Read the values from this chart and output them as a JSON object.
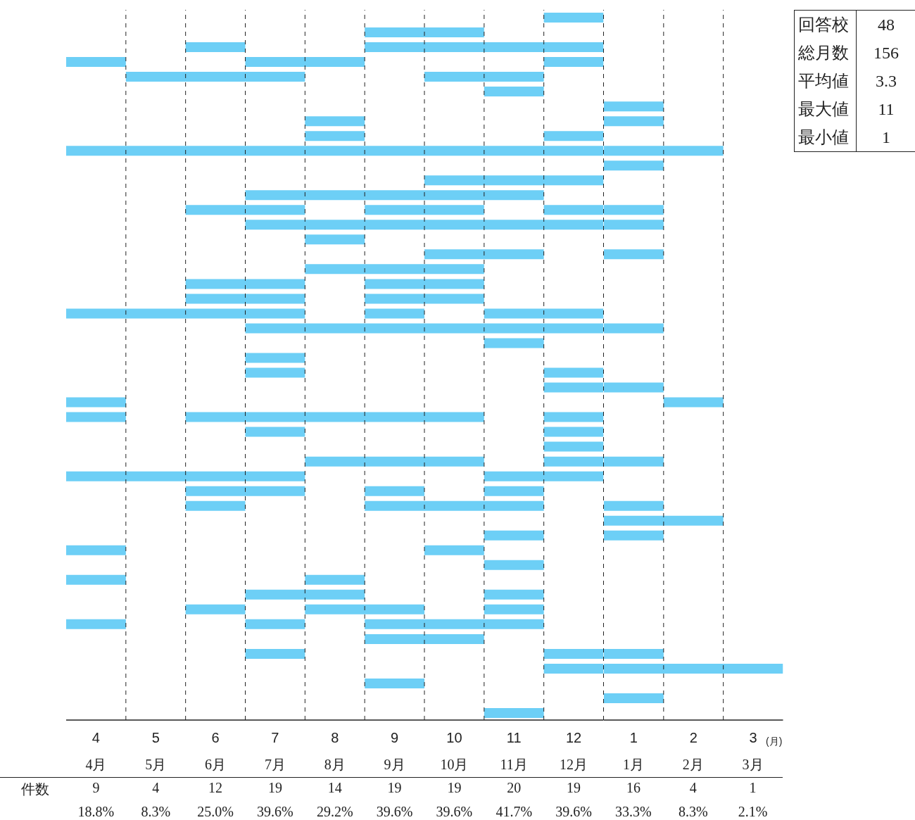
{
  "chart_data": [
    {
      "type": "bar",
      "orientation": "horizontal",
      "categories": [
        null,
        null,
        null,
        null,
        null,
        null,
        null,
        null,
        null,
        null,
        null,
        null,
        null,
        null,
        null,
        null,
        null,
        null,
        null,
        null,
        null,
        null,
        null,
        null,
        null,
        null,
        null,
        null,
        null,
        null,
        null,
        null,
        null,
        null,
        null,
        null,
        null,
        null,
        null,
        null,
        null,
        null,
        null,
        null,
        null,
        null,
        null,
        null
      ],
      "series": [
        {
          "color": "#6dcff6",
          "base": [
            11.5,
            8.5,
            5.5,
            3.5,
            4.5,
            10.5,
            null,
            7.5,
            7.5,
            3.5,
            null,
            9.5,
            6.5,
            5.5,
            6.5,
            7.5,
            9.5,
            7.5,
            5.5,
            5.5,
            3.5,
            6.5,
            10.5,
            6.5,
            6.5,
            11.5,
            3.5,
            3.5,
            6.5,
            11.5,
            7.5,
            3.5,
            5.5,
            5.5,
            null,
            10.5,
            3.5,
            10.5,
            3.5,
            6.5,
            5.5,
            3.5,
            8.5,
            6.5,
            11.5,
            8.5,
            null,
            10.5
          ],
          "values": [
            1,
            2,
            1,
            1,
            3,
            1,
            null,
            1,
            1,
            9,
            null,
            3,
            5,
            2,
            6,
            1,
            2,
            3,
            2,
            2,
            4,
            6,
            1,
            1,
            1,
            1,
            1,
            1,
            1,
            1,
            3,
            4,
            2,
            1,
            null,
            1,
            1,
            1,
            1,
            2,
            1,
            1,
            2,
            1,
            1,
            1,
            null,
            1
          ]
        },
        {
          "color": "#6dcff6",
          "base": [
            null,
            null,
            8.5,
            6.5,
            9.5,
            null,
            null,
            null,
            11.5,
            null,
            null,
            null,
            null,
            8.5,
            null,
            null,
            null,
            null,
            8.5,
            8.5,
            8.5,
            null,
            null,
            null,
            11.5,
            null,
            null,
            5.5,
            11.5,
            null,
            11.5,
            10.5,
            8.5,
            8.5,
            null,
            null,
            9.5,
            null,
            7.5,
            10.5,
            7.5,
            6.5,
            null,
            11.5,
            null,
            null,
            null,
            null
          ],
          "values": [
            null,
            null,
            4,
            2,
            2,
            null,
            null,
            null,
            1,
            null,
            null,
            null,
            null,
            2,
            null,
            null,
            null,
            null,
            2,
            2,
            1,
            null,
            null,
            null,
            1,
            null,
            null,
            5,
            1,
            null,
            1,
            2,
            1,
            3,
            null,
            null,
            1,
            null,
            1,
            1,
            2,
            1,
            null,
            1,
            null,
            null,
            null,
            null
          ]
        },
        {
          "color": "#6dcff6",
          "base": [
            null,
            null,
            null,
            11.5,
            null,
            null,
            null,
            null,
            null,
            null,
            null,
            null,
            null,
            11.5,
            null,
            null,
            null,
            null,
            null,
            null,
            10.5,
            null,
            null,
            null,
            null,
            null,
            null,
            11.5,
            null,
            null,
            null,
            null,
            10.5,
            null,
            null,
            null,
            null,
            null,
            null,
            null,
            10.5,
            8.5,
            null,
            null,
            null,
            null,
            null,
            null
          ],
          "values": [
            null,
            null,
            null,
            1,
            null,
            null,
            null,
            null,
            null,
            null,
            null,
            null,
            null,
            1,
            null,
            null,
            null,
            null,
            null,
            null,
            2,
            null,
            null,
            null,
            null,
            null,
            null,
            1,
            null,
            null,
            null,
            null,
            1,
            null,
            null,
            null,
            null,
            null,
            null,
            null,
            1,
            3,
            null,
            null,
            null,
            null,
            null,
            null
          ]
        }
      ],
      "xlim": [
        3.5,
        12.5
      ],
      "xticks": [
        4,
        {
          "value": 4.5,
          "label": null
        },
        5,
        {
          "value": 5.5,
          "label": null
        },
        6,
        {
          "value": 6.5,
          "label": null
        },
        7,
        {
          "value": 7.5,
          "label": null
        },
        8,
        {
          "value": 8.5,
          "label": null
        },
        9,
        {
          "value": 9.5,
          "label": null
        },
        10,
        {
          "value": 10.5,
          "label": null
        },
        11,
        {
          "value": 11.5,
          "label": null
        },
        12,
        {
          "value": 12.5,
          "label": null
        }
      ],
      "grid": "x",
      "tick_labels": "x",
      "annotations": [
        "4月",
        "5月",
        "6月",
        "7月",
        "8月",
        "9月",
        "10月",
        "11月",
        "12月",
        "1月",
        "2月",
        "3月",
        "件数",
        "9",
        "4",
        "12",
        "19",
        "14",
        "19",
        "19",
        "20",
        "19",
        "16",
        "4",
        "1",
        "18.8%",
        "8.3%",
        "25.0%",
        "39.6%",
        "29.2%",
        "39.6%",
        "39.6%",
        "41.7%",
        "39.6%",
        "33.3%",
        "8.3%",
        "2.1%"
      ]
    },
    {
      "type": "bar",
      "orientation": "horizontal",
      "categories": [
        null,
        null,
        null,
        null,
        null,
        null,
        null,
        null,
        null,
        null,
        null,
        null,
        null,
        null,
        null,
        null,
        null,
        null,
        null,
        null,
        null,
        null,
        null,
        null,
        null,
        null,
        null,
        null,
        null,
        null,
        null,
        null,
        null,
        null,
        null,
        null,
        null,
        null,
        null,
        null,
        null,
        null,
        null,
        null,
        null,
        null,
        null,
        null
      ],
      "series": [
        {
          "color": "#6dcff6",
          "base": [
            null,
            null,
            null,
            null,
            null,
            null,
            0.5,
            0.5,
            null,
            0.5,
            0.5,
            null,
            null,
            0.5,
            0.5,
            null,
            0.5,
            null,
            null,
            null,
            null,
            0.5,
            null,
            null,
            null,
            0.5,
            1.5,
            null,
            null,
            null,
            0.5,
            null,
            null,
            0.5,
            0.5,
            0.5,
            null,
            null,
            null,
            null,
            null,
            null,
            null,
            0.5,
            0.5,
            null,
            0.5,
            null
          ],
          "values": [
            null,
            null,
            null,
            null,
            null,
            null,
            1,
            1,
            null,
            2,
            1,
            null,
            null,
            1,
            1,
            null,
            1,
            null,
            null,
            null,
            null,
            1,
            null,
            null,
            null,
            1,
            1,
            null,
            null,
            null,
            1,
            null,
            null,
            1,
            2,
            1,
            null,
            null,
            null,
            null,
            null,
            null,
            null,
            1,
            3,
            null,
            1,
            null
          ]
        }
      ],
      "xlim": [
        0.5,
        3.5
      ],
      "xticks": [
        1,
        {
          "value": 1.5,
          "label": null
        },
        2,
        {
          "value": 2.5,
          "label": null
        },
        3
      ],
      "xlabel": "(月)",
      "grid": "x",
      "tick_labels": "x"
    },
    {
      "type": "other",
      "categories": [
        "回答校",
        "総月数",
        "平均値",
        "最大値",
        "最小値"
      ],
      "values": [
        48,
        156,
        3.3,
        11,
        1
      ],
      "data_labels": true
    }
  ]
}
